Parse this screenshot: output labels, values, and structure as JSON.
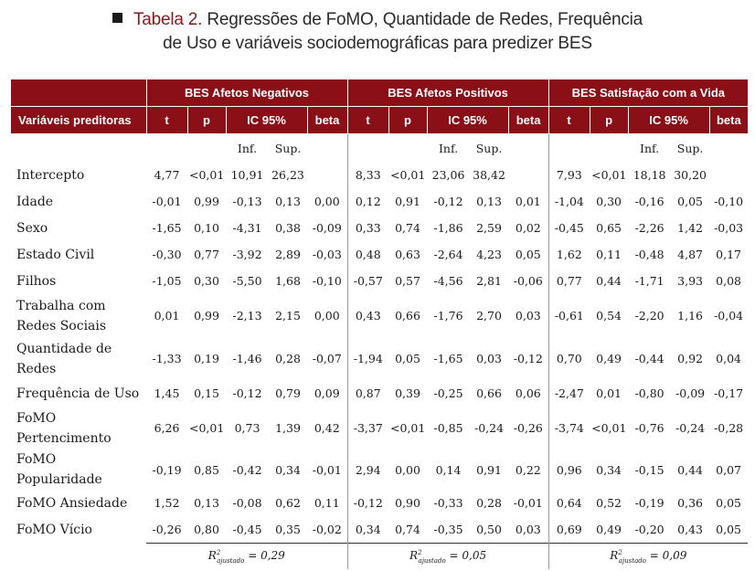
{
  "title": {
    "bullet_icon": "square-bullet",
    "label": "Tabela 2.",
    "line1": "Regressões de FoMO, Quantidade de Redes, Frequência",
    "line2": "de Uso e variáveis sociodemográficas para predizer BES"
  },
  "colors": {
    "header_bg": "#8b0f17",
    "title_label": "#8a1a1a"
  },
  "groups": [
    "BES Afetos Negativos",
    "BES Afetos Positivos",
    "BES Satisfação com a Vida"
  ],
  "header": {
    "variables": "Variáveis preditoras",
    "t": "t",
    "p": "p",
    "ic": "IC 95%",
    "beta": "beta",
    "inf": "Inf.",
    "sup": "Sup."
  },
  "rows": [
    {
      "label": "Intercepto",
      "two_line": false,
      "values": [
        "4,77",
        "<0,01",
        "10,91",
        "26,23",
        "",
        "8,33",
        "<0,01",
        "23,06",
        "38,42",
        "",
        "7,93",
        "<0,01",
        "18,18",
        "30,20",
        ""
      ]
    },
    {
      "label": "Idade",
      "two_line": false,
      "values": [
        "-0,01",
        "0,99",
        "-0,13",
        "0,13",
        "0,00",
        "0,12",
        "0,91",
        "-0,12",
        "0,13",
        "0,01",
        "-1,04",
        "0,30",
        "-0,16",
        "0,05",
        "-0,10"
      ]
    },
    {
      "label": "Sexo",
      "two_line": false,
      "values": [
        "-1,65",
        "0,10",
        "-4,31",
        "0,38",
        "-0,09",
        "0,33",
        "0,74",
        "-1,86",
        "2,59",
        "0,02",
        "-0,45",
        "0,65",
        "-2,26",
        "1,42",
        "-0,03"
      ]
    },
    {
      "label": "Estado Civil",
      "two_line": false,
      "values": [
        "-0,30",
        "0,77",
        "-3,92",
        "2,89",
        "-0,03",
        "0,48",
        "0,63",
        "-2,64",
        "4,23",
        "0,05",
        "1,62",
        "0,11",
        "-0,48",
        "4,87",
        "0,17"
      ]
    },
    {
      "label": "Filhos",
      "two_line": false,
      "values": [
        "-1,05",
        "0,30",
        "-5,50",
        "1,68",
        "-0,10",
        "-0,57",
        "0,57",
        "-4,56",
        "2,81",
        "-0,06",
        "0,77",
        "0,44",
        "-1,71",
        "3,93",
        "0,08"
      ]
    },
    {
      "label": "Trabalha com Redes Sociais",
      "two_line": true,
      "values": [
        "0,01",
        "0,99",
        "-2,13",
        "2,15",
        "0,00",
        "0,43",
        "0,66",
        "-1,76",
        "2,70",
        "0,03",
        "-0,61",
        "0,54",
        "-2,20",
        "1,16",
        "-0,04"
      ]
    },
    {
      "label": "Quantidade de Redes",
      "two_line": true,
      "values": [
        "-1,33",
        "0,19",
        "-1,46",
        "0,28",
        "-0,07",
        "-1,94",
        "0,05",
        "-1,65",
        "0,03",
        "-0,12",
        "0,70",
        "0,49",
        "-0,44",
        "0,92",
        "0,04"
      ]
    },
    {
      "label": "Frequência de Uso",
      "two_line": false,
      "values": [
        "1,45",
        "0,15",
        "-0,12",
        "0,79",
        "0,09",
        "0,87",
        "0,39",
        "-0,25",
        "0,66",
        "0,06",
        "-2,47",
        "0,01",
        "-0,80",
        "-0,09",
        "-0,17"
      ]
    },
    {
      "label": "FoMO Pertencimento",
      "two_line": true,
      "values": [
        "6,26",
        "<0,01",
        "0,73",
        "1,39",
        "0,42",
        "-3,37",
        "<0,01",
        "-0,85",
        "-0,24",
        "-0,26",
        "-3,74",
        "<0,01",
        "-0,76",
        "-0,24",
        "-0,28"
      ]
    },
    {
      "label": "FoMO Popularidade",
      "two_line": false,
      "values": [
        "-0,19",
        "0,85",
        "-0,42",
        "0,34",
        "-0,01",
        "2,94",
        "0,00",
        "0,14",
        "0,91",
        "0,22",
        "0,96",
        "0,34",
        "-0,15",
        "0,44",
        "0,07"
      ]
    },
    {
      "label": "FoMO Ansiedade",
      "two_line": false,
      "values": [
        "1,52",
        "0,13",
        "-0,08",
        "0,62",
        "0,11",
        "-0,12",
        "0,90",
        "-0,33",
        "0,28",
        "-0,01",
        "0,64",
        "0,52",
        "-0,19",
        "0,36",
        "0,05"
      ]
    },
    {
      "label": "FoMO Vício",
      "two_line": false,
      "values": [
        "-0,26",
        "0,80",
        "-0,45",
        "0,35",
        "-0,02",
        "0,34",
        "0,74",
        "-0,35",
        "0,50",
        "0,03",
        "0,69",
        "0,49",
        "-0,20",
        "0,43",
        "0,05"
      ]
    }
  ],
  "footer": {
    "r2_symbol": "R",
    "r2_sup": "2",
    "r2_sub": "ajustado",
    "values": [
      "= 0,29",
      "= 0,05",
      "= 0,09"
    ]
  }
}
